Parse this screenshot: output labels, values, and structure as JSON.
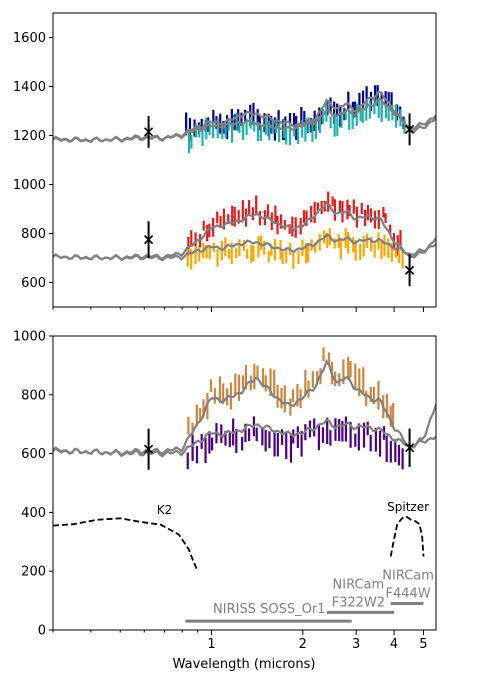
{
  "chart_data": [
    {
      "type": "line",
      "xscale": "log",
      "xlim": [
        0.3,
        5.5
      ],
      "ylim": [
        500,
        1700
      ],
      "yticks": [
        600,
        800,
        1000,
        1200,
        1400,
        1600
      ],
      "ytick_labels": [
        "600",
        "800",
        "1000",
        "1200",
        "1400",
        "1600"
      ],
      "model_curves": [
        {
          "x": [
            0.3,
            0.4,
            0.5,
            0.6,
            0.7,
            0.8,
            0.9,
            1.0,
            1.1,
            1.25,
            1.4,
            1.6,
            1.8,
            2.0,
            2.2,
            2.4,
            2.6,
            2.8,
            3.0,
            3.3,
            3.6,
            4.0,
            4.5,
            5.0,
            5.5
          ],
          "y": [
            1183,
            1180,
            1186,
            1195,
            1190,
            1205,
            1235,
            1255,
            1250,
            1285,
            1290,
            1265,
            1245,
            1245,
            1270,
            1340,
            1310,
            1330,
            1300,
            1350,
            1375,
            1305,
            1220,
            1230,
            1275
          ]
        },
        {
          "x": [
            0.3,
            0.4,
            0.5,
            0.6,
            0.7,
            0.8,
            0.9,
            1.0,
            1.1,
            1.25,
            1.4,
            1.6,
            1.8,
            2.0,
            2.2,
            2.4,
            2.6,
            2.8,
            3.0,
            3.3,
            3.6,
            4.0,
            4.5,
            5.0,
            5.5
          ],
          "y": [
            1186,
            1182,
            1183,
            1190,
            1188,
            1200,
            1225,
            1240,
            1238,
            1255,
            1250,
            1235,
            1225,
            1240,
            1255,
            1300,
            1280,
            1300,
            1290,
            1320,
            1345,
            1295,
            1230,
            1245,
            1285
          ]
        },
        {
          "x": [
            0.3,
            0.4,
            0.5,
            0.6,
            0.7,
            0.8,
            0.9,
            1.0,
            1.1,
            1.25,
            1.4,
            1.6,
            1.8,
            2.0,
            2.2,
            2.4,
            2.6,
            2.8,
            3.0,
            3.3,
            3.6,
            4.0,
            4.5,
            5.0,
            5.5
          ],
          "y": [
            705,
            700,
            702,
            708,
            705,
            720,
            770,
            825,
            835,
            855,
            880,
            850,
            820,
            830,
            880,
            920,
            880,
            890,
            860,
            870,
            860,
            770,
            705,
            720,
            785
          ]
        },
        {
          "x": [
            0.3,
            0.4,
            0.5,
            0.6,
            0.7,
            0.8,
            0.9,
            1.0,
            1.1,
            1.25,
            1.4,
            1.6,
            1.8,
            2.0,
            2.2,
            2.4,
            2.6,
            2.8,
            3.0,
            3.3,
            3.6,
            4.0,
            4.5,
            5.0,
            5.5
          ],
          "y": [
            705,
            702,
            700,
            702,
            700,
            705,
            730,
            745,
            740,
            760,
            765,
            745,
            730,
            740,
            760,
            790,
            770,
            780,
            765,
            775,
            770,
            745,
            715,
            730,
            760
          ]
        }
      ],
      "photometry": [
        {
          "x": 0.62,
          "y": 1215,
          "err": 65
        },
        {
          "x": 4.5,
          "y": 1225,
          "err": 65
        },
        {
          "x": 0.62,
          "y": 775,
          "err": 75
        },
        {
          "x": 4.5,
          "y": 650,
          "err": 65
        }
      ],
      "spectra": [
        {
          "color": "#00008b",
          "x_start": 0.83,
          "x_end": 4.3,
          "n": 60,
          "offset": 18,
          "err": 35,
          "base": 1
        },
        {
          "color": "#20b2aa",
          "x_start": 0.84,
          "x_end": 4.3,
          "n": 60,
          "offset": -18,
          "err": 35,
          "base": 1
        },
        {
          "color": "#e41a1c",
          "x_start": 0.84,
          "x_end": 4.2,
          "n": 60,
          "offset": 15,
          "err": 32,
          "base": 2
        },
        {
          "color": "#ffa500",
          "x_start": 0.84,
          "x_end": 4.3,
          "n": 60,
          "offset": -20,
          "err": 32,
          "base": 3
        }
      ]
    },
    {
      "type": "line",
      "xscale": "log",
      "xlim": [
        0.3,
        5.5
      ],
      "ylim": [
        0,
        1000
      ],
      "yticks": [
        0,
        200,
        400,
        600,
        800,
        1000
      ],
      "ytick_labels": [
        "0",
        "200",
        "400",
        "600",
        "800",
        "1000"
      ],
      "xticks": [
        1,
        2,
        3,
        4,
        5
      ],
      "xtick_labels": [
        "1",
        "2",
        "3",
        "4",
        "5"
      ],
      "xlabel": "Wavelength (microns)",
      "model_curves": [
        {
          "x": [
            0.3,
            0.4,
            0.5,
            0.6,
            0.7,
            0.8,
            0.9,
            1.0,
            1.1,
            1.25,
            1.4,
            1.6,
            1.8,
            2.0,
            2.2,
            2.4,
            2.6,
            2.8,
            3.0,
            3.3,
            3.6,
            4.0,
            4.5,
            5.0,
            5.5
          ],
          "y": [
            612,
            605,
            603,
            610,
            608,
            618,
            700,
            790,
            780,
            810,
            860,
            800,
            760,
            790,
            830,
            910,
            840,
            860,
            820,
            790,
            780,
            690,
            620,
            650,
            770
          ]
        },
        {
          "x": [
            0.3,
            0.4,
            0.5,
            0.6,
            0.7,
            0.8,
            0.9,
            1.0,
            1.1,
            1.25,
            1.4,
            1.6,
            1.8,
            2.0,
            2.2,
            2.4,
            2.6,
            2.8,
            3.0,
            3.3,
            3.6,
            4.0,
            4.5,
            5.0,
            5.5
          ],
          "y": [
            608,
            606,
            600,
            602,
            600,
            605,
            640,
            670,
            665,
            680,
            700,
            680,
            665,
            670,
            690,
            710,
            690,
            700,
            690,
            690,
            680,
            650,
            625,
            640,
            660
          ]
        }
      ],
      "photometry": [
        {
          "x": 0.62,
          "y": 615,
          "err": 70
        },
        {
          "x": 4.5,
          "y": 620,
          "err": 65
        }
      ],
      "spectra": [
        {
          "color": "#cd853f",
          "x_start": 0.84,
          "x_end": 4.0,
          "n": 54,
          "offset": 20,
          "err": 35,
          "base": 0
        },
        {
          "color": "#4b0082",
          "x_start": 0.84,
          "x_end": 4.3,
          "n": 54,
          "offset": -25,
          "err": 35,
          "base": 1
        }
      ],
      "bandpasses": [
        {
          "label": "K2",
          "x": [
            0.3,
            0.35,
            0.42,
            0.5,
            0.58,
            0.68,
            0.78,
            0.84,
            0.87,
            0.9
          ],
          "y": [
            355,
            360,
            375,
            380,
            368,
            358,
            325,
            275,
            235,
            200
          ]
        },
        {
          "label": "Spitzer",
          "x": [
            3.9,
            4.0,
            4.1,
            4.25,
            4.4,
            4.55,
            4.7,
            4.85,
            4.95,
            5.0
          ],
          "y": [
            250,
            310,
            360,
            380,
            385,
            375,
            370,
            360,
            320,
            250
          ]
        }
      ],
      "instrument_ranges": [
        {
          "label": "NIRISS SOSS_Or1",
          "x": [
            0.82,
            2.9
          ],
          "y": 30
        },
        {
          "label": "NIRCam F322W2",
          "x": [
            2.4,
            4.0
          ],
          "y": 60,
          "two_line": [
            "NIRCam",
            "F322W2"
          ]
        },
        {
          "label": "NIRCam F444W",
          "x": [
            3.9,
            5.0
          ],
          "y": 90,
          "two_line": [
            "NIRCam",
            "F444W"
          ]
        }
      ],
      "legend": "none",
      "grid": false
    }
  ]
}
